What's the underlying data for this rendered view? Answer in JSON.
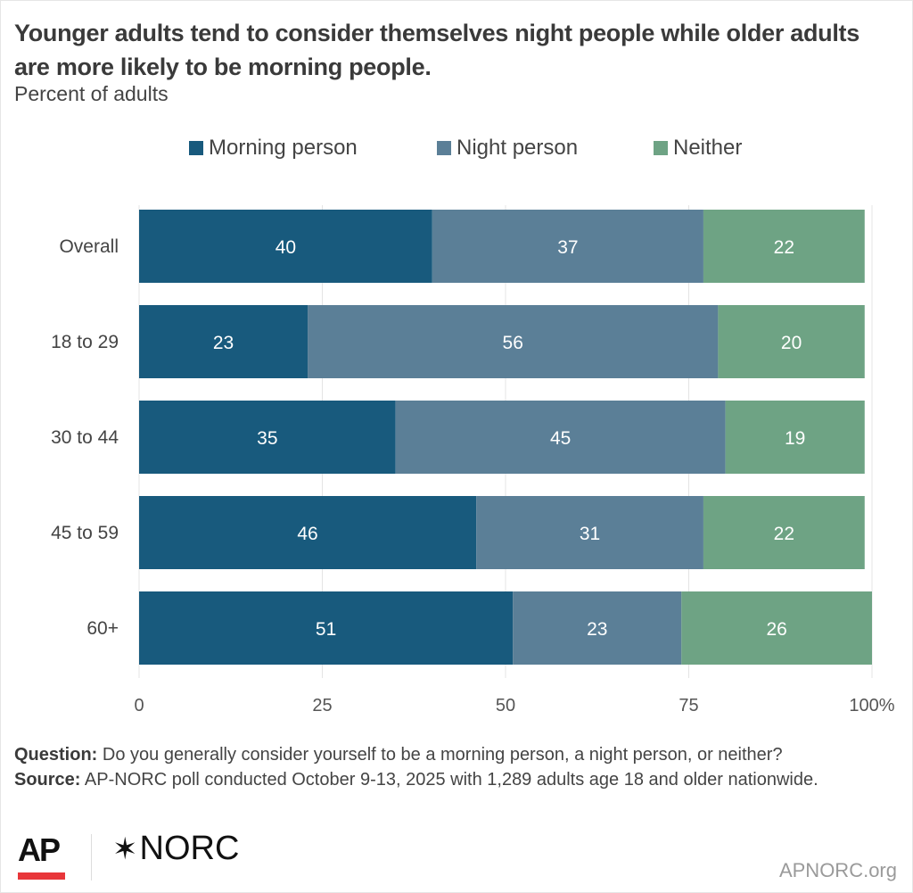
{
  "header": {
    "title": "Younger adults tend to consider themselves night people while older adults are more likely to be morning people.",
    "subtitle": "Percent of adults"
  },
  "chart_data": {
    "type": "bar",
    "orientation": "horizontal",
    "stacked": true,
    "title": "Younger adults tend to consider themselves night people while older adults are more likely to be morning people.",
    "subtitle": "Percent of adults",
    "xlabel": "",
    "ylabel": "",
    "categories": [
      "Overall",
      "18 to 29",
      "30 to 44",
      "45 to 59",
      "60+"
    ],
    "series": [
      {
        "name": "Morning person",
        "color": "#185a7d",
        "values": [
          40,
          23,
          35,
          46,
          51
        ]
      },
      {
        "name": "Night person",
        "color": "#5b7f97",
        "values": [
          37,
          56,
          45,
          31,
          23
        ]
      },
      {
        "name": "Neither",
        "color": "#6ea384",
        "values": [
          22,
          20,
          19,
          22,
          26
        ]
      }
    ],
    "xlim": [
      0,
      100
    ],
    "xticks": [
      0,
      25,
      50,
      75,
      100
    ],
    "xtick_labels": [
      "0",
      "25",
      "50",
      "75",
      "100%"
    ],
    "grid": true,
    "legend_position": "top"
  },
  "notes": {
    "question_label": "Question:",
    "question_text": " Do you generally consider yourself to be a morning person, a night person, or neither?",
    "source_label": "Source:",
    "source_text": " AP-NORC poll conducted October 9-13, 2025 with 1,289 adults age 18 and older nationwide."
  },
  "footer": {
    "logo_ap": "AP",
    "logo_norc": "NORC",
    "norc_mark": "✶",
    "site": "APNORC.org"
  }
}
